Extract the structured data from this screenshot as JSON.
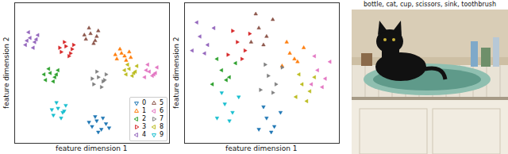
{
  "chart_data": [
    {
      "type": "scatter",
      "xlabel": "feature dimension 1",
      "ylabel": "feature dimension 2",
      "xlim": [
        0,
        100
      ],
      "ylim": [
        0,
        100
      ],
      "tick_labels": false,
      "legend": "lower right",
      "series": [
        {
          "name": "0",
          "color": "#1f77b4",
          "marker": "triangle_down",
          "x": [
            50,
            53,
            56,
            59,
            52,
            57,
            54,
            61,
            48
          ],
          "values": [
            12,
            16,
            10,
            14,
            19,
            18,
            8,
            11,
            15
          ]
        },
        {
          "name": "1",
          "color": "#ff7f0e",
          "marker": "triangle_up",
          "x": [
            66,
            69,
            72,
            74,
            68,
            71,
            75,
            65
          ],
          "values": [
            60,
            64,
            59,
            65,
            67,
            62,
            61,
            63
          ]
        },
        {
          "name": "2",
          "color": "#2ca02c",
          "marker": "triangle_left",
          "x": [
            20,
            23,
            26,
            28,
            22,
            25,
            19,
            27
          ],
          "values": [
            45,
            50,
            47,
            52,
            53,
            44,
            49,
            49
          ]
        },
        {
          "name": "3",
          "color": "#d62728",
          "marker": "triangle_right",
          "x": [
            30,
            33,
            36,
            38,
            32,
            35,
            29,
            37
          ],
          "values": [
            65,
            69,
            64,
            70,
            72,
            62,
            68,
            67
          ]
        },
        {
          "name": "4",
          "color": "#9467bd",
          "marker": "triangle_left",
          "x": [
            7,
            10,
            13,
            15,
            9,
            12,
            8,
            14
          ],
          "values": [
            70,
            75,
            72,
            77,
            79,
            68,
            73,
            74
          ]
        },
        {
          "name": "5",
          "color": "#8c564b",
          "marker": "triangle_up",
          "x": [
            46,
            49,
            52,
            54,
            48,
            51,
            45,
            53
          ],
          "values": [
            74,
            78,
            73,
            80,
            82,
            71,
            77,
            76
          ]
        },
        {
          "name": "6",
          "color": "#e377c2",
          "marker": "triangle_left",
          "x": [
            84,
            87,
            90,
            92,
            86,
            89,
            85,
            91
          ],
          "values": [
            47,
            51,
            49,
            54,
            56,
            48,
            52,
            50
          ]
        },
        {
          "name": "7",
          "color": "#7f7f7f",
          "marker": "triangle_right",
          "x": [
            51,
            54,
            57,
            59,
            53,
            56,
            50,
            58
          ],
          "values": [
            42,
            47,
            44,
            49,
            51,
            40,
            46,
            45
          ]
        },
        {
          "name": "8",
          "color": "#bcbd22",
          "marker": "triangle_left",
          "x": [
            72,
            74,
            77,
            79,
            73,
            76,
            71,
            78
          ],
          "values": [
            49,
            53,
            50,
            55,
            56,
            48,
            52,
            51
          ]
        },
        {
          "name": "9",
          "color": "#17becf",
          "marker": "triangle_down",
          "x": [
            25,
            28,
            31,
            33,
            27,
            30,
            24,
            32
          ],
          "values": [
            20,
            25,
            22,
            27,
            29,
            18,
            24,
            23
          ]
        }
      ]
    },
    {
      "type": "scatter",
      "xlabel": "feature dimension 1",
      "ylabel": "feature dimension 2",
      "xlim": [
        0,
        100
      ],
      "ylim": [
        0,
        100
      ],
      "tick_labels": false,
      "series": [
        {
          "name": "0",
          "color": "#1f77b4",
          "marker": "triangle_down",
          "x": [
            48,
            53,
            58,
            62,
            51,
            56
          ],
          "values": [
            10,
            18,
            12,
            22,
            26,
            8
          ]
        },
        {
          "name": "1",
          "color": "#ff7f0e",
          "marker": "triangle_up",
          "x": [
            63,
            68,
            73,
            77,
            66,
            71
          ],
          "values": [
            55,
            64,
            58,
            68,
            72,
            60
          ]
        },
        {
          "name": "2",
          "color": "#2ca02c",
          "marker": "triangle_left",
          "x": [
            18,
            24,
            29,
            33,
            21,
            27
          ],
          "values": [
            42,
            52,
            47,
            57,
            60,
            45
          ]
        },
        {
          "name": "3",
          "color": "#d62728",
          "marker": "triangle_right",
          "x": [
            28,
            34,
            39,
            42,
            31,
            37
          ],
          "values": [
            63,
            72,
            66,
            78,
            80,
            60
          ]
        },
        {
          "name": "4",
          "color": "#9467bd",
          "marker": "triangle_left",
          "x": [
            5,
            10,
            15,
            19,
            8,
            13
          ],
          "values": [
            66,
            76,
            70,
            82,
            86,
            64
          ]
        },
        {
          "name": "5",
          "color": "#8c564b",
          "marker": "triangle_up",
          "x": [
            43,
            48,
            53,
            57,
            46,
            51
          ],
          "values": [
            72,
            82,
            76,
            88,
            92,
            70
          ]
        },
        {
          "name": "6",
          "color": "#e377c2",
          "marker": "triangle_left",
          "x": [
            82,
            86,
            91,
            94,
            84,
            89
          ],
          "values": [
            42,
            52,
            46,
            58,
            62,
            40
          ]
        },
        {
          "name": "7",
          "color": "#7f7f7f",
          "marker": "triangle_right",
          "x": [
            49,
            54,
            59,
            63,
            52,
            57
          ],
          "values": [
            38,
            48,
            42,
            54,
            56,
            36
          ]
        },
        {
          "name": "8",
          "color": "#bcbd22",
          "marker": "triangle_left",
          "x": [
            72,
            76,
            81,
            84,
            74,
            79
          ],
          "values": [
            33,
            42,
            37,
            47,
            49,
            30
          ]
        },
        {
          "name": "9",
          "color": "#17becf",
          "marker": "triangle_down",
          "x": [
            21,
            26,
            31,
            35,
            24,
            29
          ],
          "values": [
            18,
            28,
            22,
            33,
            36,
            16
          ]
        }
      ]
    }
  ],
  "image": {
    "caption": "bottle, cat, cup, scissors, sink, toothbrush"
  }
}
